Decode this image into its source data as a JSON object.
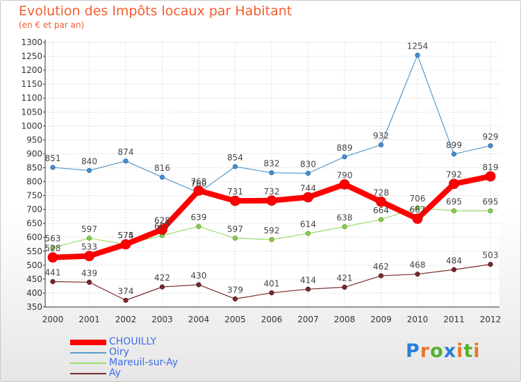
{
  "title": "Evolution des Impôts locaux par Habitant",
  "subtitle": "(en € et par an)",
  "logo": {
    "letters": [
      {
        "char": "P",
        "color": "#2a7fd4"
      },
      {
        "char": "r",
        "color": "#e8762b"
      },
      {
        "char": "o",
        "color": "#55b030"
      },
      {
        "char": "x",
        "color": "#2a7fd4"
      },
      {
        "char": "i",
        "color": "#e8762b"
      },
      {
        "char": "t",
        "color": "#55b030"
      },
      {
        "char": "i",
        "color": "#e8762b"
      }
    ]
  },
  "chart_data": {
    "type": "line",
    "title": "Evolution des Impôts locaux par Habitant",
    "subtitle": "(en € et par an)",
    "categories": [
      "2000",
      "2001",
      "2002",
      "2003",
      "2004",
      "2005",
      "2006",
      "2007",
      "2008",
      "2009",
      "2010",
      "2011",
      "2012"
    ],
    "ylim": [
      350,
      1300
    ],
    "yticks": [
      350,
      400,
      450,
      500,
      550,
      600,
      650,
      700,
      750,
      800,
      850,
      900,
      950,
      1000,
      1050,
      1100,
      1150,
      1200,
      1250,
      1300
    ],
    "grid": true,
    "legend_position": "bottom-left",
    "series": [
      {
        "name": "CHOUILLY",
        "color": "#ff0000",
        "values": [
          528,
          533,
          575,
          628,
          768,
          731,
          732,
          744,
          790,
          728,
          667,
          792,
          819
        ],
        "labels": [
          "528",
          "533",
          "575",
          "628",
          "768",
          "731",
          "732",
          "744",
          "790",
          "728",
          "667",
          "792",
          "819"
        ]
      },
      {
        "name": "Oiry",
        "color": "#5599cc",
        "values": [
          851,
          840,
          874,
          816,
          760,
          854,
          832,
          830,
          889,
          932,
          1254,
          899,
          929
        ],
        "labels": [
          "851",
          "840",
          "874",
          "816",
          "760",
          "854",
          "832",
          "830",
          "889",
          "932",
          "1254",
          "899",
          "929"
        ]
      },
      {
        "name": "Mareuil-sur-Ay",
        "color": "#99dd66",
        "values": [
          563,
          597,
          574,
          607,
          639,
          597,
          592,
          614,
          638,
          664,
          706,
          695,
          695
        ],
        "labels": [
          "563",
          "597",
          "574",
          "607",
          "639",
          "597",
          "592",
          "614",
          "638",
          "664",
          "706",
          "695",
          "695"
        ]
      },
      {
        "name": "Ay",
        "color": "#7a2a2a",
        "values": [
          441,
          439,
          374,
          422,
          430,
          379,
          401,
          414,
          421,
          462,
          468,
          484,
          503
        ],
        "labels": [
          "441",
          "439",
          "374",
          "422",
          "430",
          "379",
          "401",
          "414",
          "421",
          "462",
          "468",
          "484",
          "503"
        ]
      }
    ]
  }
}
